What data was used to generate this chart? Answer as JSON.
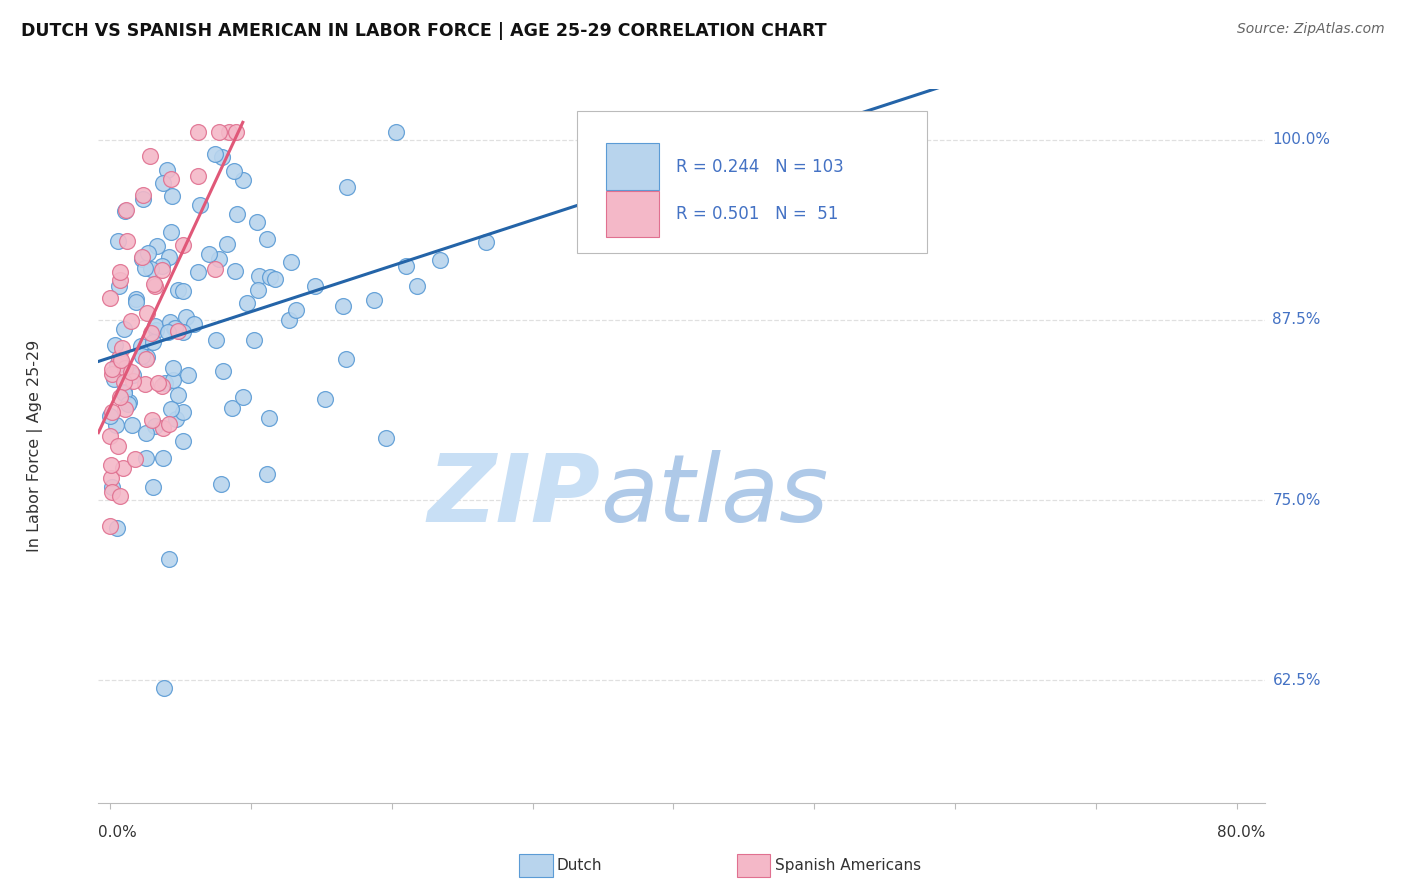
{
  "title": "DUTCH VS SPANISH AMERICAN IN LABOR FORCE | AGE 25-29 CORRELATION CHART",
  "source": "Source: ZipAtlas.com",
  "ylabel": "In Labor Force | Age 25-29",
  "yticks": [
    0.625,
    0.75,
    0.875,
    1.0
  ],
  "ytick_labels": [
    "62.5%",
    "75.0%",
    "87.5%",
    "100.0%"
  ],
  "legend_dutch": "Dutch",
  "legend_spanish": "Spanish Americans",
  "r_dutch": 0.244,
  "n_dutch": 103,
  "r_spanish": 0.501,
  "n_spanish": 51,
  "dutch_color": "#b8d4ed",
  "dutch_edge_color": "#5b9bd5",
  "spanish_color": "#f4b8c8",
  "spanish_edge_color": "#e07090",
  "trendline_dutch_color": "#2464a8",
  "trendline_spanish_color": "#e05878",
  "watermark_zip_color": "#c8dff5",
  "watermark_atlas_color": "#aec9e8",
  "background_color": "#ffffff",
  "grid_color": "#e0e0e0",
  "right_label_color": "#4472c4",
  "xlabel_color": "#333333",
  "ylabel_color": "#333333",
  "title_color": "#111111",
  "source_color": "#666666"
}
